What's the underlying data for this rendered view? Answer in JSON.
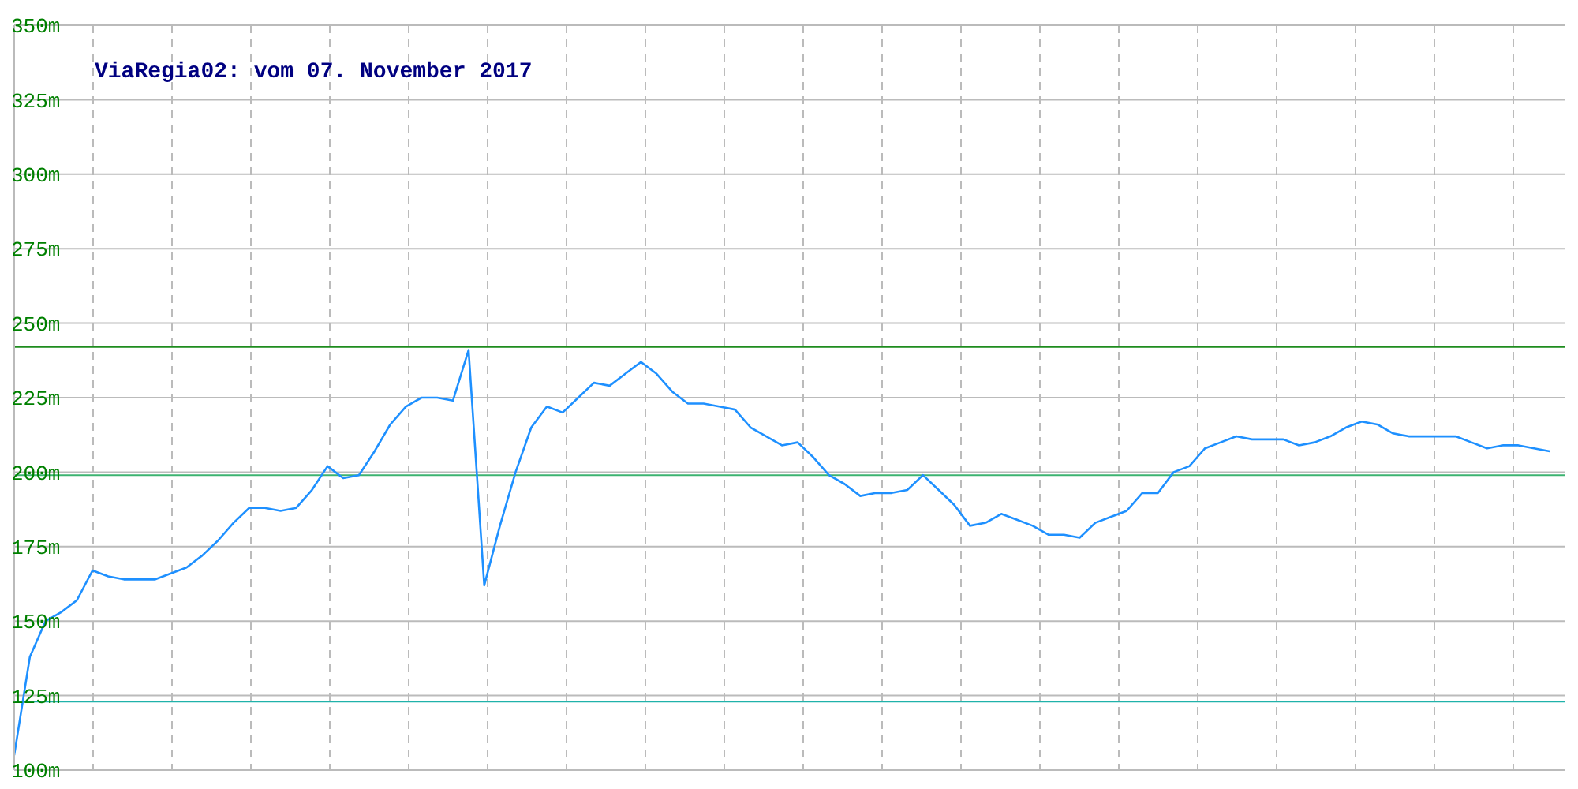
{
  "chart_data": {
    "type": "line",
    "title": "ViaRegia02: vom 07. November 2017",
    "categories": [
      null,
      null,
      null,
      null,
      null,
      null,
      null,
      null,
      null,
      null,
      null,
      null,
      null,
      null,
      null,
      null,
      null,
      null,
      null,
      null,
      null,
      null,
      null,
      null,
      null,
      null,
      null,
      null,
      null,
      null,
      null,
      null,
      null,
      null,
      null,
      null,
      null,
      null,
      null,
      null,
      null,
      null,
      null,
      null,
      null,
      null,
      null,
      null,
      null,
      null,
      null,
      null,
      null,
      null,
      null,
      null,
      null,
      null,
      null,
      null,
      null,
      null,
      null,
      null,
      null,
      null,
      null,
      null,
      null,
      null,
      null,
      null,
      null,
      null,
      null,
      null,
      null,
      null,
      null,
      null,
      null,
      null,
      null,
      null,
      null,
      null,
      null,
      null,
      null,
      null,
      null,
      null,
      null,
      null,
      null,
      null,
      null,
      null,
      null
    ],
    "series": [
      {
        "color": "#1e90ff",
        "values": [
          105,
          138,
          150,
          153,
          157,
          167,
          165,
          164,
          164,
          164,
          166,
          168,
          172,
          177,
          183,
          188,
          188,
          187,
          188,
          194,
          202,
          198,
          199,
          207,
          216,
          222,
          225,
          225,
          224,
          241,
          162,
          182,
          200,
          215,
          222,
          220,
          225,
          230,
          229,
          233,
          237,
          233,
          227,
          223,
          223,
          222,
          221,
          215,
          212,
          209,
          210,
          205,
          199,
          196,
          192,
          193,
          193,
          194,
          199,
          194,
          189,
          182,
          183,
          186,
          184,
          182,
          179,
          179,
          178,
          183,
          185,
          187,
          193,
          193,
          200,
          202,
          208,
          210,
          212,
          211,
          211,
          211,
          209,
          210,
          212,
          215,
          217,
          216,
          213,
          212,
          212,
          212,
          212,
          210,
          208,
          209,
          209,
          208,
          207
        ]
      }
    ],
    "ylim": [
      100,
      350
    ],
    "yticks": [
      {
        "value": 100,
        "label": "100m"
      },
      {
        "value": 125,
        "label": "125m"
      },
      {
        "value": 150,
        "label": "150m"
      },
      {
        "value": 175,
        "label": "175m"
      },
      {
        "value": 200,
        "label": "200m"
      },
      {
        "value": 225,
        "label": "225m"
      },
      {
        "value": 250,
        "label": "250m"
      },
      {
        "value": 275,
        "label": "275m"
      },
      {
        "value": 300,
        "label": "300m"
      },
      {
        "value": 325,
        "label": "325m"
      },
      {
        "value": 350,
        "label": "350m"
      }
    ],
    "grid": true,
    "marker": "none",
    "line_style": "solid",
    "ref_lines": [
      {
        "axis": "y",
        "value": 242,
        "color": "#1e8c1e"
      },
      {
        "axis": "y",
        "value": 199,
        "color": "#3cb371"
      },
      {
        "axis": "y",
        "value": 123,
        "color": "#20b2aa"
      }
    ]
  }
}
